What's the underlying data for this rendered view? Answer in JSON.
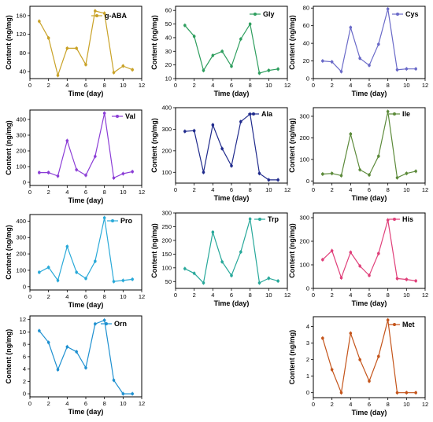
{
  "chart_data": [
    {
      "type": "line",
      "title": "",
      "legend": "g-ABA",
      "legend_position": "top-right",
      "color": "#c9a227",
      "xlabel": "Time (day)",
      "ylabel": "Content (ng/mg)",
      "x": [
        1,
        2,
        3,
        4,
        5,
        6,
        7,
        8,
        9,
        10,
        11
      ],
      "values": [
        148,
        112,
        32,
        90,
        90,
        55,
        170,
        165,
        38,
        52,
        44
      ],
      "xlim": [
        0,
        12
      ],
      "ylim": [
        25,
        180
      ],
      "xticks": [
        0,
        2,
        4,
        6,
        8,
        10,
        12
      ],
      "yticks": [
        40,
        80,
        120,
        160
      ],
      "grid": false
    },
    {
      "type": "line",
      "title": "",
      "legend": "Gly",
      "legend_position": "top-right",
      "color": "#2e9e5e",
      "xlabel": "Time (day)",
      "ylabel": "Content (ng/mg)",
      "x": [
        1,
        2,
        3,
        4,
        5,
        6,
        7,
        8,
        9,
        10,
        11
      ],
      "values": [
        49,
        41,
        16,
        27,
        30,
        19,
        39,
        50,
        14,
        16,
        17
      ],
      "xlim": [
        0,
        12
      ],
      "ylim": [
        10,
        63
      ],
      "xticks": [
        0,
        2,
        4,
        6,
        8,
        10,
        12
      ],
      "yticks": [
        10,
        20,
        30,
        40,
        50,
        60
      ],
      "grid": false
    },
    {
      "type": "line",
      "title": "",
      "legend": "Cys",
      "legend_position": "top-right",
      "color": "#6a6ac8",
      "xlabel": "Time (day)",
      "ylabel": "Content (ng/mg)",
      "x": [
        1,
        2,
        3,
        4,
        5,
        6,
        7,
        8,
        9,
        10,
        11
      ],
      "values": [
        20,
        19,
        8,
        58,
        23,
        15,
        39,
        79,
        10,
        11,
        11
      ],
      "xlim": [
        0,
        12
      ],
      "ylim": [
        0,
        82
      ],
      "xticks": [
        0,
        2,
        4,
        6,
        8,
        10,
        12
      ],
      "yticks": [
        0,
        20,
        40,
        60,
        80
      ],
      "grid": false
    },
    {
      "type": "line",
      "title": "",
      "legend": "Val",
      "legend_position": "top-right",
      "color": "#8b3dd6",
      "xlabel": "Time (day)",
      "ylabel": "Content (ng/mg)",
      "x": [
        1,
        2,
        3,
        4,
        5,
        6,
        7,
        8,
        9,
        10,
        11
      ],
      "values": [
        62,
        62,
        40,
        265,
        80,
        45,
        165,
        440,
        28,
        55,
        68
      ],
      "xlim": [
        0,
        12
      ],
      "ylim": [
        -20,
        460
      ],
      "xticks": [
        0,
        2,
        4,
        6,
        8,
        10,
        12
      ],
      "yticks": [
        0,
        100,
        200,
        300,
        400
      ],
      "grid": false
    },
    {
      "type": "line",
      "title": "",
      "legend": "Ala",
      "legend_position": "top-right",
      "color": "#1f2a8c",
      "xlabel": "Time (day)",
      "ylabel": "Content (ng/mg)",
      "x": [
        1,
        2,
        3,
        4,
        5,
        6,
        7,
        8,
        9,
        10,
        11
      ],
      "values": [
        290,
        293,
        100,
        320,
        210,
        130,
        335,
        370,
        95,
        65,
        65
      ],
      "xlim": [
        0,
        12
      ],
      "ylim": [
        50,
        400
      ],
      "xticks": [
        0,
        2,
        4,
        6,
        8,
        10,
        12
      ],
      "yticks": [
        100,
        200,
        300,
        400
      ],
      "grid": false
    },
    {
      "type": "line",
      "title": "",
      "legend": "Ile",
      "legend_position": "top-right",
      "color": "#5c8a3a",
      "xlabel": "Time (day)",
      "ylabel": "Content (ng/mg)",
      "x": [
        1,
        2,
        3,
        4,
        5,
        6,
        7,
        8,
        9,
        10,
        11
      ],
      "values": [
        32,
        35,
        25,
        218,
        52,
        28,
        115,
        322,
        15,
        35,
        45
      ],
      "xlim": [
        0,
        12
      ],
      "ylim": [
        -10,
        340
      ],
      "xticks": [
        0,
        2,
        4,
        6,
        8,
        10,
        12
      ],
      "yticks": [
        0,
        100,
        200,
        300
      ],
      "grid": false
    },
    {
      "type": "line",
      "title": "",
      "legend": "Pro",
      "legend_position": "top-right",
      "color": "#29a9d8",
      "xlabel": "Time (day)",
      "ylabel": "Content (ng/mg)",
      "x": [
        1,
        2,
        3,
        4,
        5,
        6,
        7,
        8,
        9,
        10,
        11
      ],
      "values": [
        88,
        118,
        38,
        245,
        88,
        50,
        155,
        420,
        32,
        38,
        45
      ],
      "xlim": [
        0,
        12
      ],
      "ylim": [
        -20,
        440
      ],
      "xticks": [
        0,
        2,
        4,
        6,
        8,
        10,
        12
      ],
      "yticks": [
        0,
        100,
        200,
        300,
        400
      ],
      "grid": false
    },
    {
      "type": "line",
      "title": "",
      "legend": "Trp",
      "legend_position": "top-right",
      "color": "#27a89a",
      "xlabel": "Time (day)",
      "ylabel": "Content (ng/mg)",
      "x": [
        1,
        2,
        3,
        4,
        5,
        6,
        7,
        8,
        9,
        10,
        11
      ],
      "values": [
        97,
        80,
        45,
        230,
        122,
        72,
        158,
        278,
        45,
        62,
        52
      ],
      "xlim": [
        0,
        12
      ],
      "ylim": [
        25,
        300
      ],
      "xticks": [
        0,
        2,
        4,
        6,
        8,
        10,
        12
      ],
      "yticks": [
        50,
        100,
        150,
        200,
        250,
        300
      ],
      "grid": false
    },
    {
      "type": "line",
      "title": "",
      "legend": "His",
      "legend_position": "top-right",
      "color": "#e0407a",
      "xlabel": "Time (day)",
      "ylabel": "Content (ng/mg)",
      "x": [
        1,
        2,
        3,
        4,
        5,
        6,
        7,
        8,
        9,
        10,
        11
      ],
      "values": [
        122,
        160,
        45,
        153,
        95,
        55,
        148,
        290,
        42,
        38,
        32
      ],
      "xlim": [
        0,
        12
      ],
      "ylim": [
        0,
        320
      ],
      "xticks": [
        0,
        2,
        4,
        6,
        8,
        10,
        12
      ],
      "yticks": [
        0,
        100,
        200,
        300
      ],
      "grid": false
    },
    {
      "type": "line",
      "title": "",
      "legend": "Orn",
      "legend_position": "top-right",
      "color": "#1e90d0",
      "xlabel": "Time (day)",
      "ylabel": "Content (ng/mg)",
      "x": [
        1,
        2,
        3,
        4,
        5,
        6,
        7,
        8,
        9,
        10,
        11
      ],
      "values": [
        10.2,
        8.3,
        3.9,
        7.6,
        6.8,
        4.2,
        11.3,
        11.9,
        2.2,
        0,
        0
      ],
      "xlim": [
        0,
        12
      ],
      "ylim": [
        -0.5,
        12.6
      ],
      "xticks": [
        0,
        2,
        4,
        6,
        8,
        10,
        12
      ],
      "yticks": [
        0,
        2,
        4,
        6,
        8,
        10,
        12
      ],
      "grid": false
    },
    {
      "type": "line",
      "title": "",
      "legend": "Met",
      "legend_position": "top-right",
      "color": "#c4541a",
      "xlabel": "Time (day)",
      "ylabel": "Content (ng/mg)",
      "x": [
        1,
        2,
        3,
        4,
        5,
        6,
        7,
        8,
        9,
        10,
        11
      ],
      "values": [
        3.3,
        1.4,
        0,
        3.6,
        2.0,
        0.7,
        2.2,
        4.4,
        0,
        0,
        0
      ],
      "xlim": [
        0,
        12
      ],
      "ylim": [
        -0.3,
        4.6
      ],
      "xticks": [
        0,
        2,
        4,
        6,
        8,
        10,
        12
      ],
      "yticks": [
        0,
        1,
        2,
        3,
        4
      ],
      "grid": false
    }
  ]
}
